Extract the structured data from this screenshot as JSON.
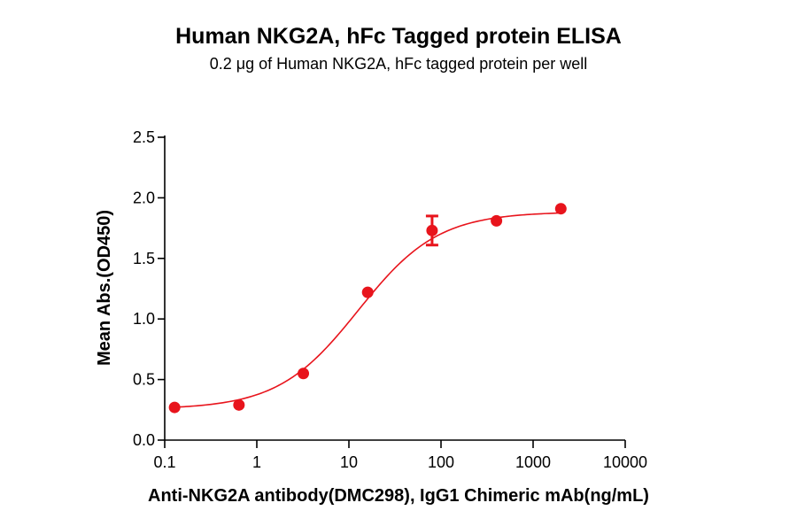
{
  "colors": {
    "series": "#e8141c",
    "axis": "#000000"
  },
  "chart_data": {
    "type": "scatter",
    "title": "Human NKG2A, hFc Tagged protein ELISA",
    "subtitle": "0.2 μg of Human NKG2A, hFc tagged protein per well",
    "xlabel": "Anti-NKG2A antibody(DMC298), IgG1 Chimeric mAb(ng/mL)",
    "ylabel": "Mean Abs.(OD450)",
    "xscale": "log",
    "xlim": [
      0.1,
      10000
    ],
    "ylim": [
      0,
      2.5
    ],
    "x_ticks": [
      0.1,
      1,
      10,
      100,
      1000,
      10000
    ],
    "x_tick_labels": [
      "0.1",
      "1",
      "10",
      "100",
      "1000",
      "10000"
    ],
    "y_ticks": [
      0,
      0.5,
      1,
      1.5,
      2,
      2.5
    ],
    "y_tick_labels": [
      "0.0",
      "0.5",
      "1.0",
      "1.5",
      "2.0",
      "2.5"
    ],
    "grid": false,
    "legend": "none",
    "fit": "four-parameter logistic curve",
    "series": [
      {
        "x": [
          0.128,
          0.64,
          3.2,
          16,
          80,
          400,
          2000
        ],
        "y": [
          0.27,
          0.29,
          0.55,
          1.22,
          1.73,
          1.81,
          1.91
        ],
        "error": [
          0,
          0,
          0,
          0,
          0.12,
          0,
          0
        ]
      }
    ]
  }
}
